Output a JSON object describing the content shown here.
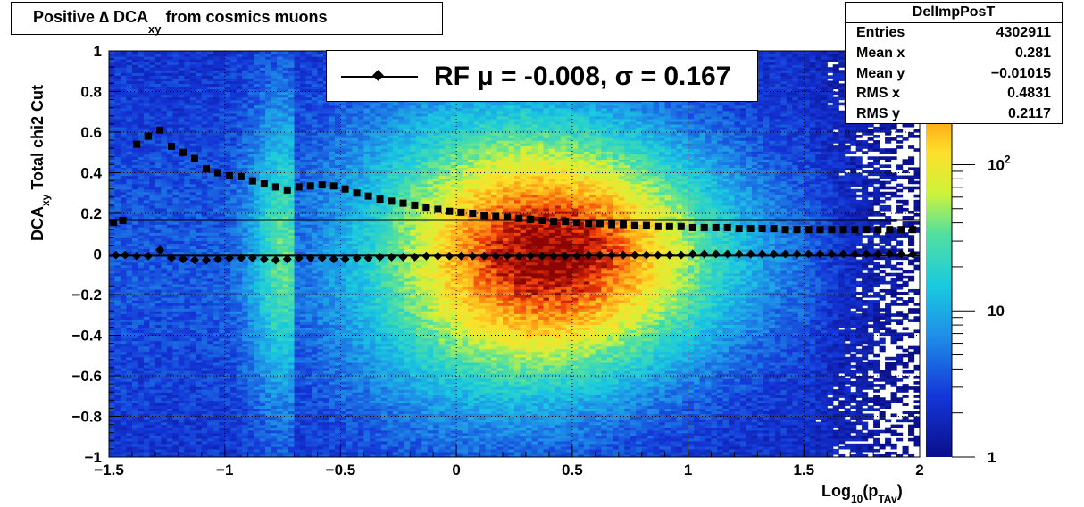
{
  "title": {
    "main": "Positive ∆ DCA",
    "sub": "xy",
    "rest": " from cosmics muons"
  },
  "stats": {
    "name": "DelImpPosT",
    "rows": [
      {
        "label": "Entries",
        "value": "4302911"
      },
      {
        "label": "Mean x",
        "value": "0.281"
      },
      {
        "label": "Mean y",
        "value": "−0.01015"
      },
      {
        "label": "RMS x",
        "value": "0.4831"
      },
      {
        "label": "RMS y",
        "value": "0.2117"
      }
    ]
  },
  "legend": {
    "text": "RF μ = -0.008, σ =   0.167"
  },
  "axes": {
    "x_title_main": "Log",
    "x_title_sub1": "10",
    "x_title_mid": "(p",
    "x_title_sub2": "TAv",
    "x_title_end": ")",
    "y_title_main": "DCA",
    "y_title_sub": "xy",
    "y_title_rest": "   Total chi2 Cut"
  },
  "chart_data": {
    "type": "heatmap",
    "xlim": [
      -1.5,
      2.0
    ],
    "ylim": [
      -1,
      1
    ],
    "xticks": [
      -1.5,
      -1,
      -0.5,
      0,
      0.5,
      1,
      1.5,
      2
    ],
    "xtick_labels": [
      "−1.5",
      "−1",
      "−0.5",
      "0",
      "0.5",
      "1",
      "1.5",
      "2"
    ],
    "yticks": [
      -1,
      -0.8,
      -0.6,
      -0.4,
      -0.2,
      0,
      0.2,
      0.4,
      0.6,
      0.8,
      1
    ],
    "ytick_labels": [
      "−1",
      "−0.8",
      "−0.6",
      "−0.4",
      "−0.2",
      "0",
      "0.2",
      "0.4",
      "0.6",
      "0.8",
      "1"
    ],
    "grid": true,
    "colorbar": {
      "scale": "log",
      "range": [
        1,
        600
      ],
      "ticks": [
        1,
        10,
        100
      ],
      "tick_labels": [
        "1",
        "10",
        "10^2"
      ]
    },
    "mean_series": {
      "x": [
        -1.47,
        -1.43,
        -1.38,
        -1.33,
        -1.28,
        -1.23,
        -1.18,
        -1.13,
        -1.08,
        -1.03,
        -0.98,
        -0.93,
        -0.88,
        -0.83,
        -0.78,
        -0.73,
        -0.68,
        -0.63,
        -0.58,
        -0.53,
        -0.48,
        -0.43,
        -0.38,
        -0.33,
        -0.28,
        -0.23,
        -0.18,
        -0.13,
        -0.08,
        -0.03,
        0.02,
        0.07,
        0.12,
        0.17,
        0.22,
        0.27,
        0.32,
        0.37,
        0.42,
        0.47,
        0.52,
        0.57,
        0.62,
        0.67,
        0.72,
        0.77,
        0.82,
        0.87,
        0.92,
        0.97,
        1.02,
        1.07,
        1.12,
        1.17,
        1.22,
        1.27,
        1.32,
        1.37,
        1.42,
        1.47,
        1.52,
        1.57,
        1.62,
        1.67,
        1.72,
        1.77,
        1.82,
        1.87,
        1.92,
        1.97
      ],
      "y": [
        -0.005,
        -0.005,
        -0.01,
        -0.01,
        0.02,
        -0.02,
        -0.025,
        -0.03,
        -0.03,
        -0.025,
        -0.02,
        -0.02,
        -0.02,
        -0.025,
        -0.03,
        -0.025,
        -0.02,
        -0.02,
        -0.02,
        -0.025,
        -0.025,
        -0.02,
        -0.02,
        -0.015,
        -0.015,
        -0.015,
        -0.015,
        -0.01,
        -0.01,
        -0.01,
        -0.01,
        -0.01,
        -0.01,
        -0.01,
        -0.01,
        -0.01,
        -0.01,
        -0.01,
        -0.01,
        -0.01,
        -0.01,
        -0.005,
        -0.005,
        -0.005,
        -0.005,
        -0.005,
        -0.005,
        -0.005,
        -0.005,
        -0.005,
        0,
        0,
        0,
        0,
        0,
        0,
        0,
        0,
        0,
        0,
        0,
        0,
        0,
        0,
        0,
        0,
        0,
        0,
        0,
        0
      ]
    },
    "rms_series": {
      "x": [
        -1.48,
        -1.44,
        -1.38,
        -1.33,
        -1.28,
        -1.23,
        -1.18,
        -1.13,
        -1.08,
        -1.03,
        -0.98,
        -0.93,
        -0.88,
        -0.83,
        -0.78,
        -0.73,
        -0.68,
        -0.63,
        -0.58,
        -0.53,
        -0.48,
        -0.43,
        -0.38,
        -0.33,
        -0.28,
        -0.23,
        -0.18,
        -0.13,
        -0.08,
        -0.03,
        0.02,
        0.07,
        0.12,
        0.17,
        0.22,
        0.27,
        0.32,
        0.37,
        0.42,
        0.47,
        0.52,
        0.57,
        0.62,
        0.67,
        0.72,
        0.77,
        0.82,
        0.87,
        0.92,
        0.97,
        1.02,
        1.07,
        1.12,
        1.17,
        1.22,
        1.27,
        1.32,
        1.37,
        1.42,
        1.47,
        1.52,
        1.57,
        1.62,
        1.67,
        1.72,
        1.77,
        1.82,
        1.87,
        1.92,
        1.97
      ],
      "y": [
        0.155,
        0.165,
        0.54,
        0.58,
        0.61,
        0.53,
        0.5,
        0.47,
        0.42,
        0.4,
        0.385,
        0.38,
        0.36,
        0.345,
        0.33,
        0.315,
        0.33,
        0.335,
        0.34,
        0.335,
        0.32,
        0.3,
        0.285,
        0.27,
        0.26,
        0.25,
        0.24,
        0.23,
        0.22,
        0.21,
        0.205,
        0.2,
        0.19,
        0.185,
        0.18,
        0.175,
        0.17,
        0.165,
        0.16,
        0.16,
        0.155,
        0.15,
        0.15,
        0.145,
        0.145,
        0.14,
        0.14,
        0.135,
        0.135,
        0.135,
        0.13,
        0.13,
        0.13,
        0.13,
        0.125,
        0.125,
        0.125,
        0.125,
        0.12,
        0.12,
        0.12,
        0.12,
        0.12,
        0.12,
        0.12,
        0.12,
        0.12,
        0.12,
        0.12,
        0.12
      ]
    },
    "fit_lines": [
      0.167,
      -0.008
    ]
  },
  "colors": {
    "frame": "#000000",
    "grid": "#000000"
  }
}
